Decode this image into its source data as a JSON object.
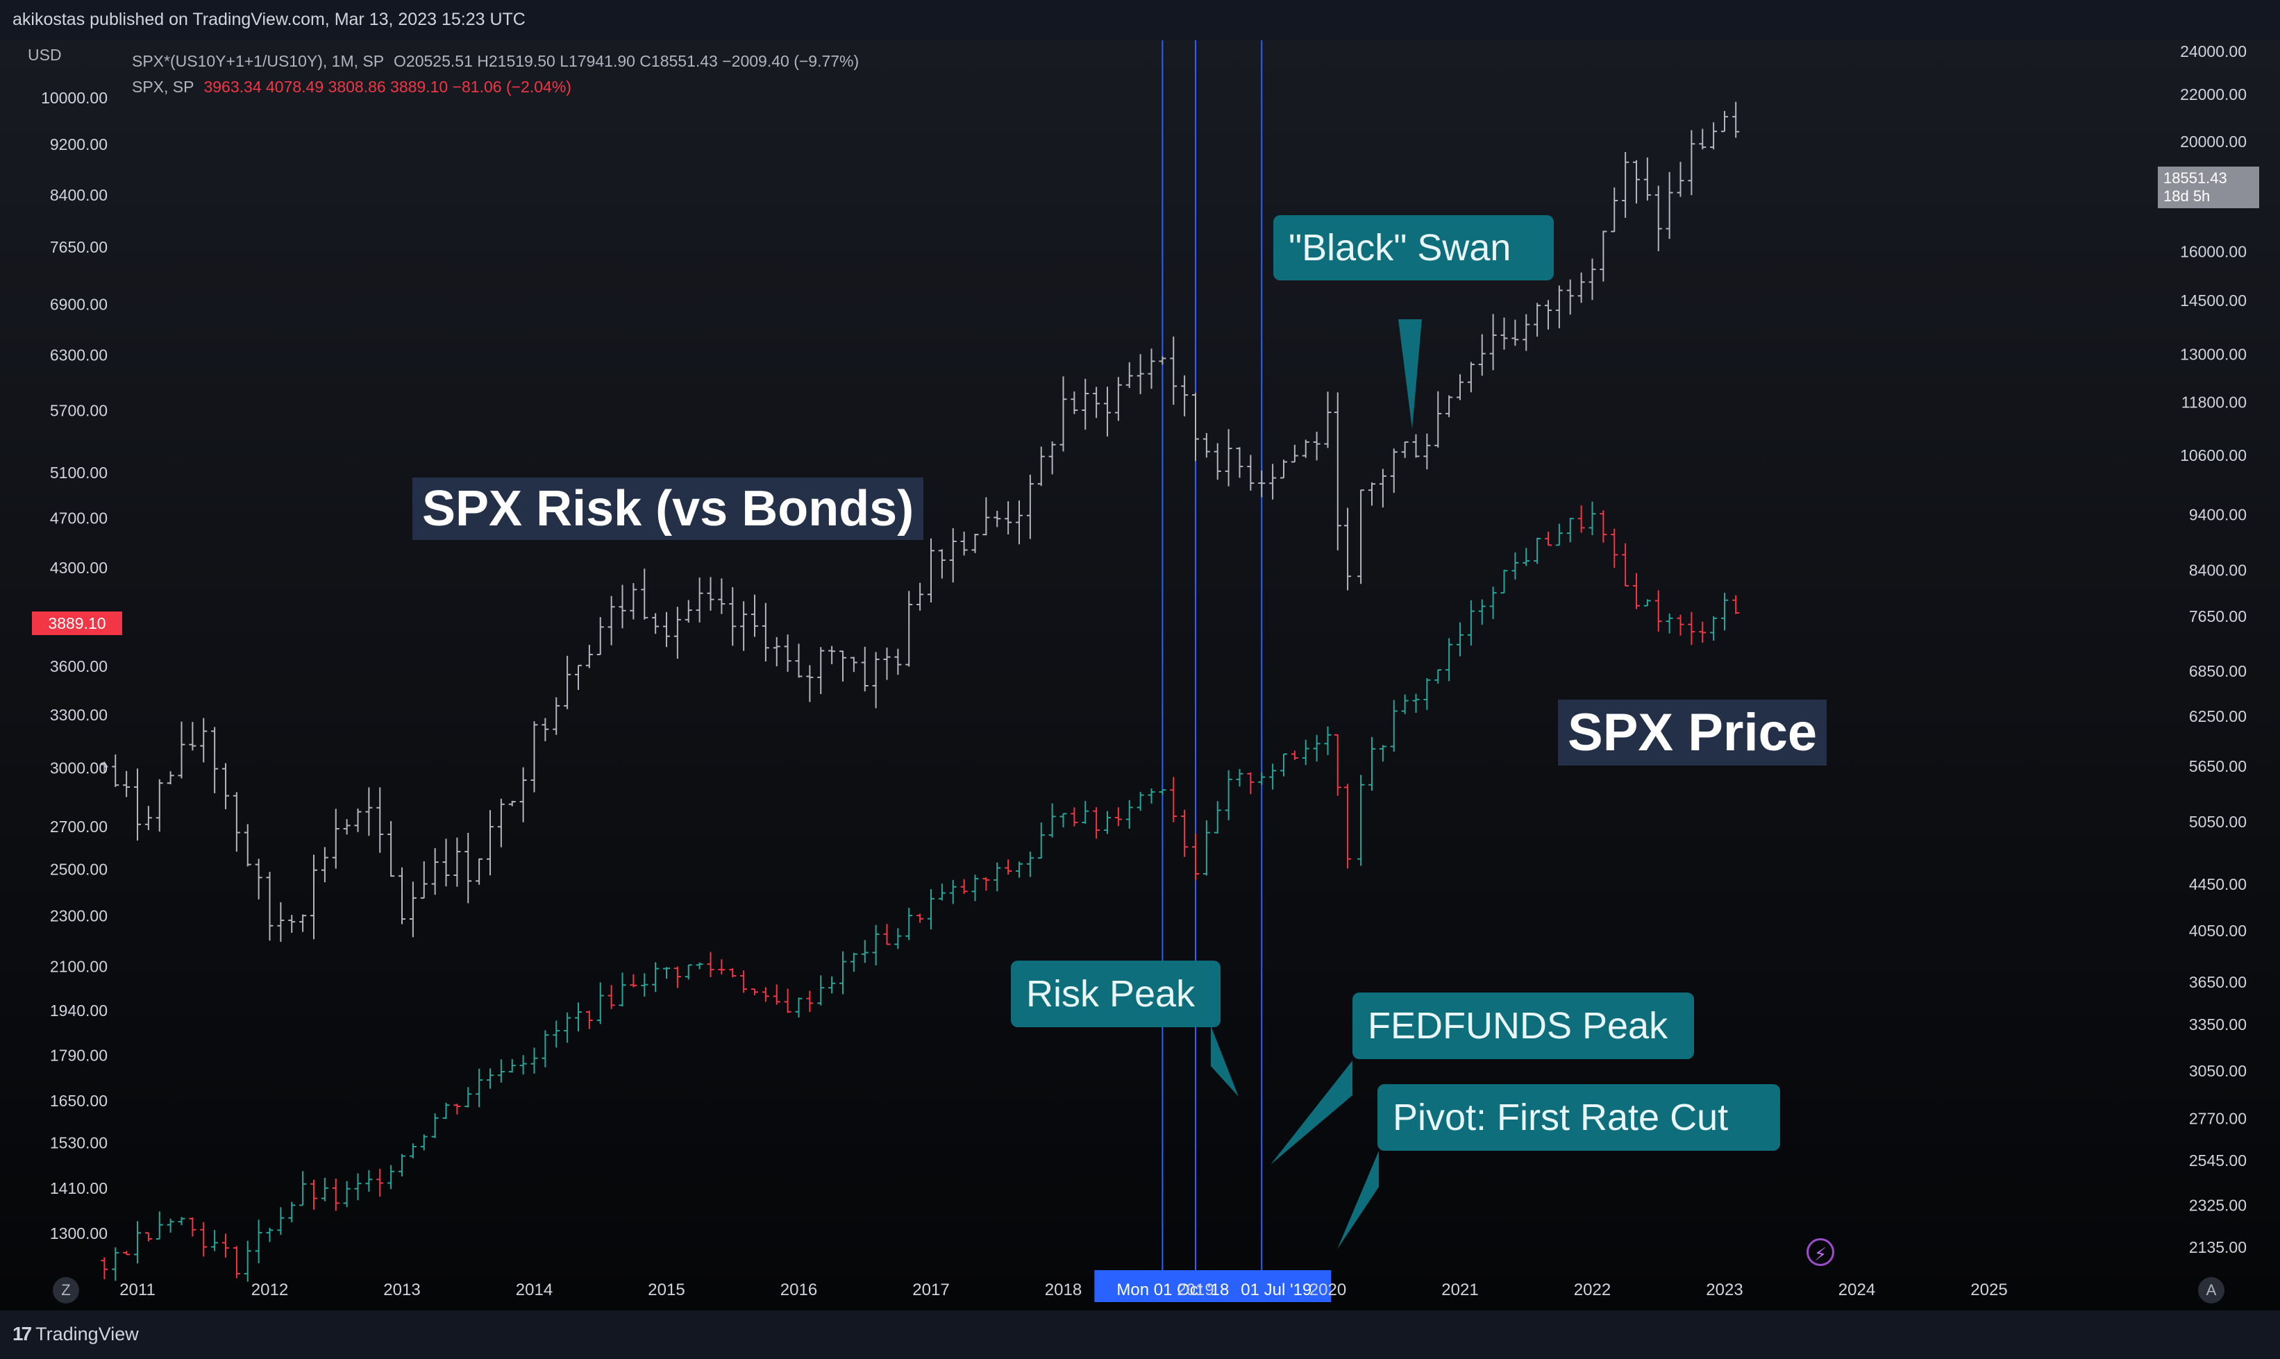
{
  "header": {
    "publish_text": "akikostas published on TradingView.com, Mar 13, 2023 15:23 UTC"
  },
  "currency": "USD",
  "legend": {
    "row1_symbol": "SPX*(US10Y+1+1/US10Y), 1M, SP",
    "row1_values": "O20525.51  H21519.50  L17941.90  C18551.43  −2009.40 (−9.77%)",
    "row2_symbol": "SPX, SP",
    "row2_values": "3963.34  4078.49  3808.86  3889.10  −81.06 (−2.04%)"
  },
  "badges": {
    "left_price": "3889.10",
    "right_price": "18551.43",
    "right_countdown": "18d 5h"
  },
  "annotations": {
    "risk_title": "SPX Risk (vs Bonds)",
    "price_title": "SPX Price",
    "black_swan": "\"Black\" Swan",
    "risk_peak": "Risk Peak",
    "fedfunds_peak": "FEDFUNDS Peak",
    "pivot": "Pivot: First Rate Cut"
  },
  "crosshair_labels": {
    "a": "Mon 01 Oct '18",
    "b": "01 Jul '19"
  },
  "buttons": {
    "zoom": "Z",
    "auto": "A"
  },
  "footer": {
    "brand": "TradingView",
    "brand_mark": "17"
  },
  "colors": {
    "background": "#0d0f14",
    "up": "#26a69a",
    "down": "#f23645",
    "ratio_bar": "#b2b5be",
    "vline": "#2962ff",
    "callout": "#0f6e7c",
    "label_bg": "#243047"
  },
  "chart_data": {
    "type": "ohlc-bar",
    "x_axis": {
      "ticks": [
        "2011",
        "2012",
        "2013",
        "2014",
        "2015",
        "2016",
        "2017",
        "2018",
        "2019",
        "2020",
        "2021",
        "2022",
        "2023",
        "2024",
        "2025"
      ],
      "range": [
        2010.5,
        2026.0
      ]
    },
    "left_axis": {
      "scale": "log",
      "ticks": [
        1300,
        1410,
        1530,
        1650,
        1790,
        1940,
        2100,
        2300,
        2500,
        2700,
        3000,
        3300,
        3600,
        4300,
        4700,
        5100,
        5700,
        6300,
        6900,
        7650,
        8400,
        9200,
        10000
      ],
      "tick_labels": [
        "1300.00",
        "1410.00",
        "1530.00",
        "1650.00",
        "1790.00",
        "1940.00",
        "2100.00",
        "2300.00",
        "2500.00",
        "2700.00",
        "3000.00",
        "3300.00",
        "3600.00",
        "4300.00",
        "4700.00",
        "5100.00",
        "5700.00",
        "6300.00",
        "6900.00",
        "7650.00",
        "8400.00",
        "9200.00",
        "10000.00"
      ]
    },
    "right_axis": {
      "scale": "log",
      "ticks": [
        2135,
        2325,
        2545,
        2770,
        3050,
        3350,
        3650,
        4050,
        4450,
        5050,
        5650,
        6250,
        6850,
        7650,
        8400,
        9400,
        10600,
        11800,
        13000,
        14500,
        16000,
        20000,
        22000,
        24000
      ],
      "tick_labels": [
        "2135.00",
        "2325.00",
        "2545.00",
        "2770.00",
        "3050.00",
        "3350.00",
        "3650.00",
        "4050.00",
        "4450.00",
        "5050.00",
        "5650.00",
        "6250.00",
        "6850.00",
        "7650.00",
        "8400.00",
        "9400.00",
        "10600.00",
        "11800.00",
        "13000.00",
        "14500.00",
        "16000.00",
        "20000.00",
        "22000.00",
        "24000.00"
      ]
    },
    "vertical_lines": [
      2018.75,
      2019.0,
      2019.5
    ],
    "series": [
      {
        "name": "SPX*(US10Y+1+1/US10Y)",
        "axis": "right",
        "style": "ohlc",
        "points": [
          [
            2010.75,
            5650
          ],
          [
            2011.0,
            5100
          ],
          [
            2011.25,
            5550
          ],
          [
            2011.5,
            6100
          ],
          [
            2011.75,
            5000
          ],
          [
            2012.0,
            4100
          ],
          [
            2012.25,
            4300
          ],
          [
            2012.5,
            5000
          ],
          [
            2012.75,
            5100
          ],
          [
            2013.0,
            4200
          ],
          [
            2013.25,
            4700
          ],
          [
            2013.5,
            4600
          ],
          [
            2013.75,
            5100
          ],
          [
            2014.0,
            6000
          ],
          [
            2014.25,
            6900
          ],
          [
            2014.5,
            7500
          ],
          [
            2014.75,
            8000
          ],
          [
            2015.0,
            7600
          ],
          [
            2015.25,
            7800
          ],
          [
            2015.5,
            7500
          ],
          [
            2015.75,
            7400
          ],
          [
            2016.0,
            6600
          ],
          [
            2016.25,
            7300
          ],
          [
            2016.5,
            6800
          ],
          [
            2016.75,
            7100
          ],
          [
            2017.0,
            8800
          ],
          [
            2017.25,
            9000
          ],
          [
            2017.5,
            9300
          ],
          [
            2017.75,
            9700
          ],
          [
            2018.0,
            11800
          ],
          [
            2018.25,
            11600
          ],
          [
            2018.5,
            12400
          ],
          [
            2018.75,
            13000
          ],
          [
            2019.0,
            11000
          ],
          [
            2019.25,
            10400
          ],
          [
            2019.5,
            10200
          ],
          [
            2019.75,
            10600
          ],
          [
            2020.0,
            11200
          ],
          [
            2020.15,
            8100
          ],
          [
            2020.25,
            9600
          ],
          [
            2020.5,
            10600
          ],
          [
            2020.75,
            11000
          ],
          [
            2021.0,
            12600
          ],
          [
            2021.25,
            13500
          ],
          [
            2021.5,
            13700
          ],
          [
            2021.75,
            14600
          ],
          [
            2022.0,
            16000
          ],
          [
            2022.25,
            18800
          ],
          [
            2022.5,
            17000
          ],
          [
            2022.75,
            19500
          ],
          [
            2023.0,
            21000
          ],
          [
            2023.17,
            18551.43
          ]
        ]
      },
      {
        "name": "SPX",
        "axis": "left",
        "style": "ohlc-colored",
        "points": [
          [
            2010.75,
            1230
          ],
          [
            2011.0,
            1290
          ],
          [
            2011.25,
            1350
          ],
          [
            2011.5,
            1290
          ],
          [
            2011.75,
            1230
          ],
          [
            2012.0,
            1320
          ],
          [
            2012.25,
            1400
          ],
          [
            2012.5,
            1380
          ],
          [
            2012.75,
            1420
          ],
          [
            2013.0,
            1500
          ],
          [
            2013.25,
            1600
          ],
          [
            2013.5,
            1680
          ],
          [
            2013.75,
            1760
          ],
          [
            2014.0,
            1800
          ],
          [
            2014.25,
            1900
          ],
          [
            2014.5,
            1960
          ],
          [
            2014.75,
            2050
          ],
          [
            2015.0,
            2080
          ],
          [
            2015.25,
            2100
          ],
          [
            2015.5,
            2080
          ],
          [
            2015.75,
            1960
          ],
          [
            2016.0,
            1960
          ],
          [
            2016.25,
            2060
          ],
          [
            2016.5,
            2170
          ],
          [
            2016.75,
            2230
          ],
          [
            2017.0,
            2360
          ],
          [
            2017.25,
            2410
          ],
          [
            2017.5,
            2470
          ],
          [
            2017.75,
            2560
          ],
          [
            2018.0,
            2800
          ],
          [
            2018.25,
            2700
          ],
          [
            2018.5,
            2820
          ],
          [
            2018.75,
            2920
          ],
          [
            2019.0,
            2500
          ],
          [
            2019.25,
            2900
          ],
          [
            2019.5,
            2980
          ],
          [
            2019.75,
            3050
          ],
          [
            2020.0,
            3230
          ],
          [
            2020.15,
            2580
          ],
          [
            2020.25,
            2950
          ],
          [
            2020.5,
            3280
          ],
          [
            2020.75,
            3500
          ],
          [
            2021.0,
            3800
          ],
          [
            2021.25,
            4180
          ],
          [
            2021.5,
            4400
          ],
          [
            2021.75,
            4600
          ],
          [
            2022.0,
            4700
          ],
          [
            2022.25,
            4150
          ],
          [
            2022.5,
            3950
          ],
          [
            2022.75,
            3800
          ],
          [
            2023.0,
            4050
          ],
          [
            2023.17,
            3889.1
          ]
        ]
      }
    ]
  }
}
